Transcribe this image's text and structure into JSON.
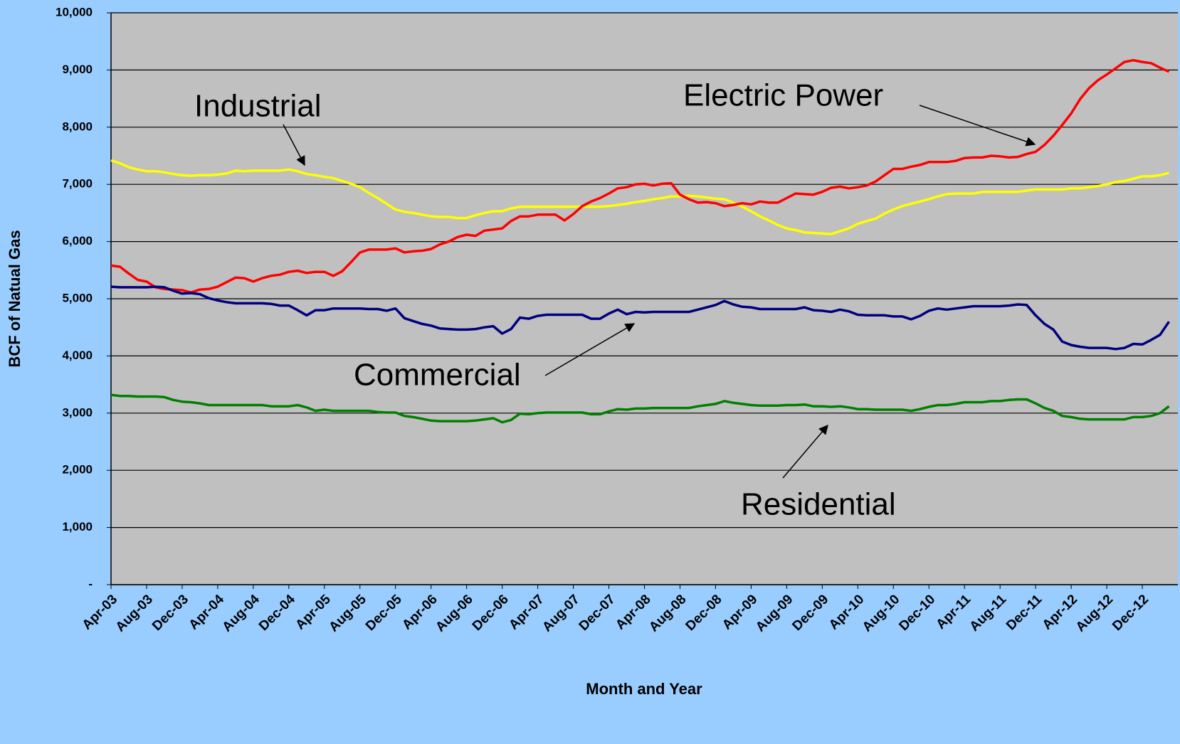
{
  "chart_data": {
    "type": "line",
    "x_label": "Month and Year",
    "y_label": "BCF of Natual Gas",
    "categories": [
      "Apr-03",
      null,
      null,
      null,
      "Aug-03",
      null,
      null,
      null,
      "Dec-03",
      null,
      null,
      null,
      "Apr-04",
      null,
      null,
      null,
      "Aug-04",
      null,
      null,
      null,
      "Dec-04",
      null,
      null,
      null,
      "Apr-05",
      null,
      null,
      null,
      "Aug-05",
      null,
      null,
      null,
      "Dec-05",
      null,
      null,
      null,
      "Apr-06",
      null,
      null,
      null,
      "Aug-06",
      null,
      null,
      null,
      "Dec-06",
      null,
      null,
      null,
      "Apr-07",
      null,
      null,
      null,
      "Aug-07",
      null,
      null,
      null,
      "Dec-07",
      null,
      null,
      null,
      "Apr-08",
      null,
      null,
      null,
      "Aug-08",
      null,
      null,
      null,
      "Dec-08",
      null,
      null,
      null,
      "Apr-09",
      null,
      null,
      null,
      "Aug-09",
      null,
      null,
      null,
      "Dec-09",
      null,
      null,
      null,
      "Apr-10",
      null,
      null,
      null,
      "Aug-10",
      null,
      null,
      null,
      "Dec-10",
      null,
      null,
      null,
      "Apr-11",
      null,
      null,
      null,
      "Aug-11",
      null,
      null,
      null,
      "Dec-11",
      null,
      null,
      null,
      "Apr-12",
      null,
      null,
      null,
      "Aug-12",
      null,
      null,
      null,
      "Dec-12",
      null,
      null,
      null
    ],
    "series": [
      {
        "name": "Industrial",
        "color": "#ffff00",
        "values": [
          7420,
          7370,
          7300,
          7260,
          7230,
          7230,
          7210,
          7180,
          7160,
          7150,
          7160,
          7160,
          7170,
          7190,
          7240,
          7230,
          7240,
          7240,
          7240,
          7240,
          7260,
          7230,
          7180,
          7160,
          7130,
          7110,
          7060,
          7010,
          6950,
          6850,
          6760,
          6660,
          6560,
          6520,
          6500,
          6470,
          6440,
          6430,
          6430,
          6410,
          6410,
          6460,
          6500,
          6530,
          6530,
          6580,
          6610,
          6610,
          6610,
          6610,
          6610,
          6610,
          6610,
          6610,
          6610,
          6610,
          6620,
          6640,
          6660,
          6690,
          6710,
          6740,
          6760,
          6790,
          6790,
          6800,
          6790,
          6770,
          6750,
          6740,
          6680,
          6610,
          6530,
          6440,
          6370,
          6290,
          6230,
          6200,
          6160,
          6150,
          6140,
          6130,
          6180,
          6230,
          6310,
          6360,
          6400,
          6490,
          6560,
          6620,
          6660,
          6700,
          6740,
          6790,
          6830,
          6840,
          6840,
          6840,
          6870,
          6870,
          6870,
          6870,
          6870,
          6890,
          6910,
          6910,
          6910,
          6910,
          6930,
          6930,
          6950,
          6970,
          7000,
          7040,
          7060,
          7100,
          7140,
          7140,
          7160,
          7200
        ]
      },
      {
        "name": "Electric Power",
        "color": "#ff0000",
        "values": [
          5580,
          5560,
          5440,
          5330,
          5300,
          5200,
          5170,
          5160,
          5150,
          5110,
          5160,
          5170,
          5210,
          5290,
          5370,
          5360,
          5300,
          5360,
          5400,
          5420,
          5470,
          5490,
          5450,
          5470,
          5470,
          5400,
          5480,
          5640,
          5810,
          5860,
          5860,
          5860,
          5880,
          5810,
          5830,
          5840,
          5870,
          5950,
          6000,
          6080,
          6120,
          6100,
          6190,
          6210,
          6230,
          6360,
          6440,
          6440,
          6470,
          6470,
          6470,
          6370,
          6480,
          6620,
          6700,
          6760,
          6840,
          6930,
          6950,
          7000,
          7010,
          6980,
          7010,
          7020,
          6820,
          6740,
          6680,
          6690,
          6670,
          6620,
          6640,
          6670,
          6650,
          6700,
          6680,
          6680,
          6760,
          6840,
          6830,
          6820,
          6870,
          6940,
          6960,
          6930,
          6950,
          6980,
          7050,
          7160,
          7270,
          7270,
          7310,
          7340,
          7390,
          7390,
          7390,
          7410,
          7460,
          7470,
          7470,
          7500,
          7490,
          7470,
          7480,
          7530,
          7570,
          7690,
          7850,
          8040,
          8240,
          8490,
          8680,
          8820,
          8920,
          9030,
          9140,
          9170,
          9140,
          9120,
          9040,
          8970
        ]
      },
      {
        "name": "Commercial",
        "color": "#000080",
        "values": [
          5210,
          5200,
          5200,
          5200,
          5200,
          5210,
          5200,
          5140,
          5090,
          5100,
          5080,
          5010,
          4970,
          4940,
          4920,
          4920,
          4920,
          4920,
          4910,
          4880,
          4880,
          4800,
          4710,
          4800,
          4800,
          4830,
          4830,
          4830,
          4830,
          4820,
          4820,
          4790,
          4830,
          4660,
          4610,
          4560,
          4530,
          4480,
          4470,
          4460,
          4460,
          4470,
          4500,
          4520,
          4390,
          4470,
          4670,
          4650,
          4700,
          4720,
          4720,
          4720,
          4720,
          4720,
          4650,
          4650,
          4740,
          4810,
          4730,
          4770,
          4760,
          4770,
          4770,
          4770,
          4770,
          4770,
          4810,
          4850,
          4890,
          4960,
          4900,
          4860,
          4850,
          4820,
          4820,
          4820,
          4820,
          4820,
          4850,
          4800,
          4790,
          4770,
          4810,
          4780,
          4720,
          4710,
          4710,
          4710,
          4690,
          4690,
          4640,
          4700,
          4790,
          4830,
          4810,
          4830,
          4850,
          4870,
          4870,
          4870,
          4870,
          4880,
          4900,
          4890,
          4710,
          4560,
          4460,
          4250,
          4190,
          4160,
          4140,
          4140,
          4140,
          4120,
          4140,
          4210,
          4200,
          4280,
          4370,
          4600
        ]
      },
      {
        "name": "Residential",
        "color": "#008000",
        "values": [
          3320,
          3300,
          3300,
          3290,
          3290,
          3290,
          3280,
          3230,
          3200,
          3190,
          3170,
          3140,
          3140,
          3140,
          3140,
          3140,
          3140,
          3140,
          3120,
          3120,
          3120,
          3140,
          3100,
          3040,
          3060,
          3040,
          3040,
          3040,
          3040,
          3040,
          3020,
          3010,
          3010,
          2950,
          2930,
          2900,
          2870,
          2860,
          2860,
          2860,
          2860,
          2870,
          2890,
          2910,
          2840,
          2880,
          2990,
          2980,
          3000,
          3010,
          3010,
          3010,
          3010,
          3010,
          2980,
          2980,
          3030,
          3070,
          3060,
          3080,
          3080,
          3090,
          3090,
          3090,
          3090,
          3090,
          3120,
          3140,
          3160,
          3210,
          3180,
          3160,
          3140,
          3130,
          3130,
          3130,
          3140,
          3140,
          3150,
          3120,
          3120,
          3110,
          3120,
          3100,
          3070,
          3070,
          3060,
          3060,
          3060,
          3060,
          3040,
          3070,
          3110,
          3140,
          3140,
          3160,
          3190,
          3190,
          3190,
          3210,
          3210,
          3230,
          3240,
          3240,
          3170,
          3090,
          3040,
          2950,
          2930,
          2900,
          2890,
          2890,
          2890,
          2890,
          2890,
          2930,
          2930,
          2950,
          3000,
          3120
        ]
      }
    ],
    "ylim": [
      0,
      10000
    ],
    "yticks": [
      {
        "value": 0,
        "label": "-"
      },
      {
        "value": 1000,
        "label": "1,000"
      },
      {
        "value": 2000,
        "label": "2,000"
      },
      {
        "value": 3000,
        "label": "3,000"
      },
      {
        "value": 4000,
        "label": "4,000"
      },
      {
        "value": 5000,
        "label": "5,000"
      },
      {
        "value": 6000,
        "label": "6,000"
      },
      {
        "value": 7000,
        "label": "7,000"
      },
      {
        "value": 8000,
        "label": "8,000"
      },
      {
        "value": 9000,
        "label": "9,000"
      },
      {
        "value": 10000,
        "label": "10,000"
      }
    ],
    "grid": true
  }
}
